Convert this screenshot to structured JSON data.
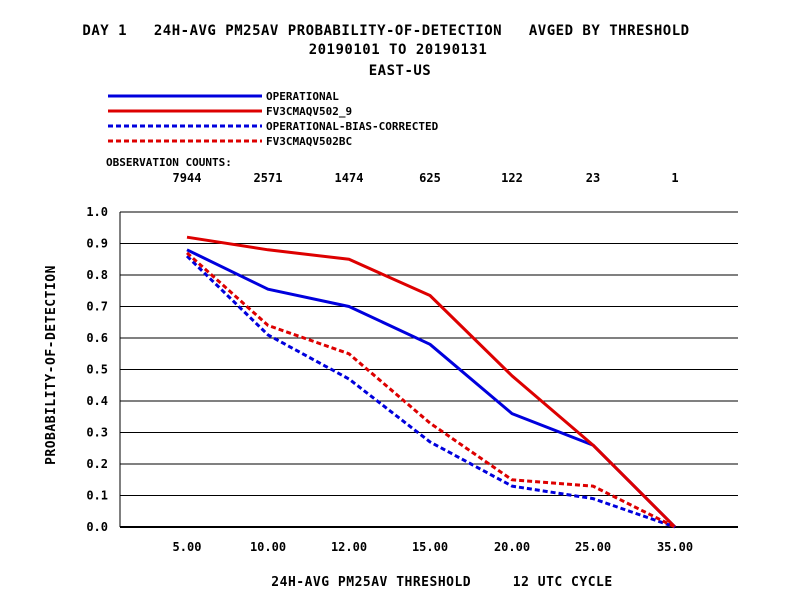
{
  "chart_data": {
    "type": "line",
    "title_lines": [
      "DAY 1   24H-AVG PM25AV PROBABILITY-OF-DETECTION   AVGED BY THRESHOLD",
      "20190101 TO 20190131",
      "EAST-US"
    ],
    "xlabel": "24H-AVG PM25AV THRESHOLD     12 UTC CYCLE",
    "ylabel": "PROBABILITY-OF-DETECTION",
    "categories": [
      "5.00",
      "10.00",
      "12.00",
      "15.00",
      "20.00",
      "25.00",
      "35.00"
    ],
    "observation_counts_label": "OBSERVATION COUNTS:",
    "observation_counts": [
      "7944",
      "2571",
      "1474",
      "625",
      "122",
      "23",
      "1"
    ],
    "ylim": [
      0,
      1.0
    ],
    "yticks": [
      "0.0",
      "0.1",
      "0.2",
      "0.3",
      "0.4",
      "0.5",
      "0.6",
      "0.7",
      "0.8",
      "0.9",
      "1.0"
    ],
    "grid": "horizontal",
    "legend_position": "top-left",
    "series": [
      {
        "name": "OPERATIONAL",
        "color": "#0000dd",
        "dash": "solid",
        "values": [
          0.88,
          0.755,
          0.7,
          0.58,
          0.36,
          0.26,
          0.0
        ]
      },
      {
        "name": "FV3CMAQV502_9",
        "color": "#dd0000",
        "dash": "solid",
        "values": [
          0.92,
          0.88,
          0.85,
          0.735,
          0.48,
          0.26,
          0.0
        ]
      },
      {
        "name": "OPERATIONAL-BIAS-CORRECTED",
        "color": "#0000dd",
        "dash": "dashed",
        "values": [
          0.86,
          0.61,
          0.47,
          0.27,
          0.13,
          0.09,
          0.0
        ]
      },
      {
        "name": "FV3CMAQV502BC",
        "color": "#dd0000",
        "dash": "dashed",
        "values": [
          0.87,
          0.64,
          0.55,
          0.33,
          0.15,
          0.13,
          0.0
        ]
      }
    ]
  }
}
